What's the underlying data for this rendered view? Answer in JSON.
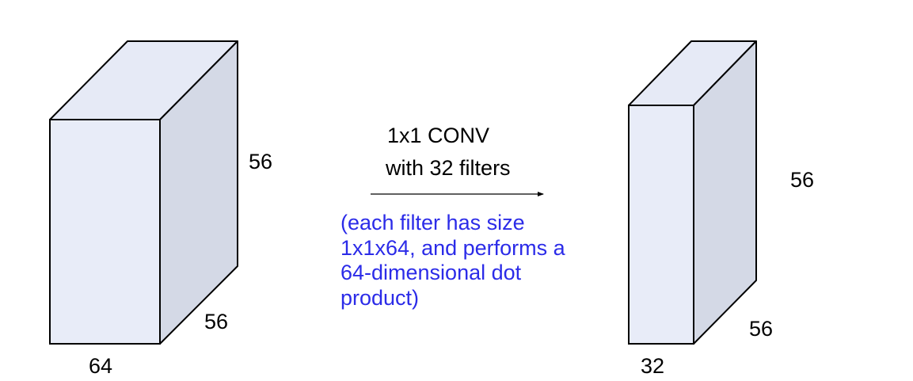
{
  "colors": {
    "front_face": "#e8ecf8",
    "top_face": "#e6eaf6",
    "side_face": "#d4d9e6",
    "edge": "#000000",
    "note_text": "#2b2be8"
  },
  "input_volume": {
    "height_label": "56",
    "depth_label": "56",
    "width_label": "64"
  },
  "operation": {
    "caption_line1": "1x1 CONV",
    "caption_line2": "with 32 filters",
    "note_lines": [
      "(each filter has size",
      "1x1x64, and performs a",
      "64-dimensional dot",
      "product)"
    ]
  },
  "output_volume": {
    "height_label": "56",
    "depth_label": "56",
    "width_label": "32"
  }
}
